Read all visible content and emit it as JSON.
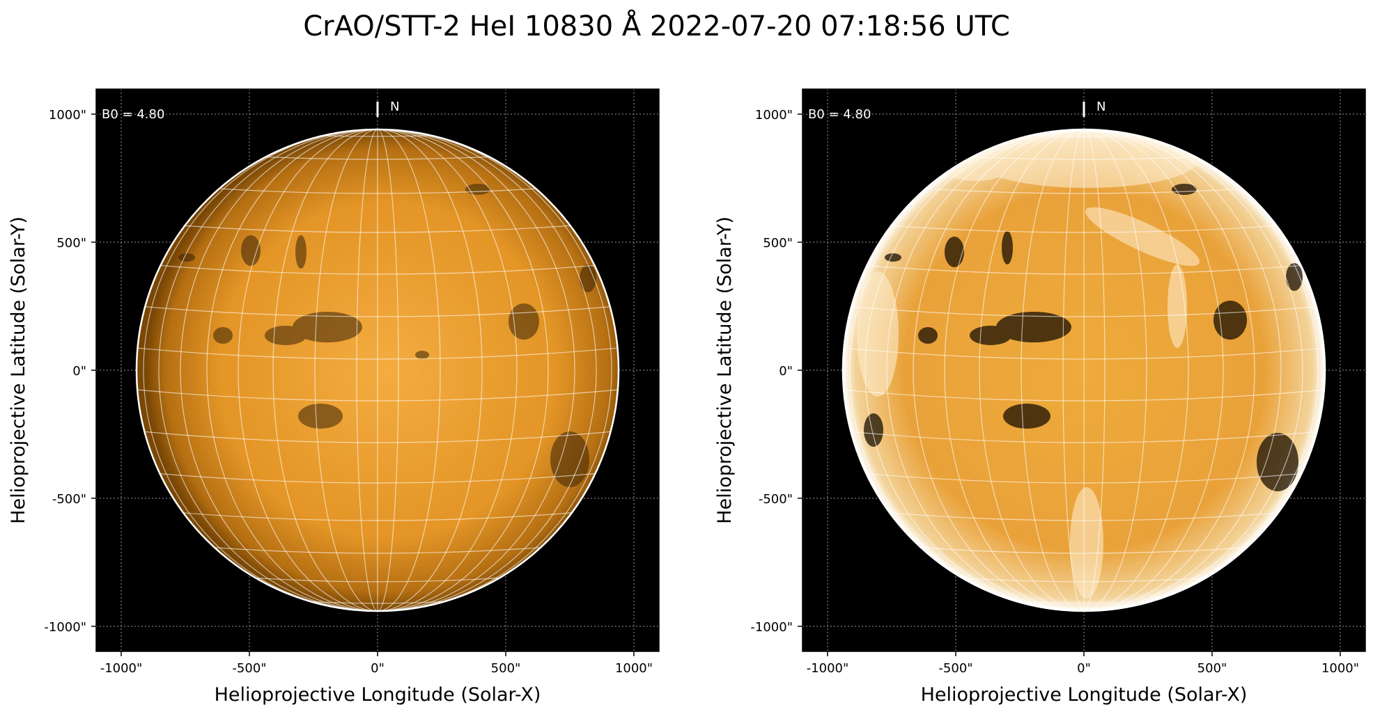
{
  "title": "CrAO/STT-2 HeI 10830 Å 2022-07-20 07:18:56 UTC",
  "colors": {
    "background": "#000000",
    "disk_center": "#f2a63a",
    "disk_limb": "#8a5208",
    "grid": "#ffffff",
    "limb": "#ffffff"
  },
  "panels": [
    {
      "name": "original",
      "b0_label": "B0 = 4.80",
      "north_label": "N",
      "xlabel": "Helioprojective Longitude (Solar-X)",
      "ylabel": "Helioprojective Latitude (Solar-Y)",
      "x_ticks": [
        "-1000\"",
        "-500\"",
        "0\"",
        "500\"",
        "1000\""
      ],
      "y_ticks": [
        "1000\"",
        "500\"",
        "0\"",
        "-500\"",
        "-1000\""
      ]
    },
    {
      "name": "enhanced",
      "b0_label": "B0 = 4.80",
      "north_label": "N",
      "xlabel": "Helioprojective Longitude (Solar-X)",
      "ylabel": "Helioprojective Latitude (Solar-Y)",
      "x_ticks": [
        "-1000\"",
        "-500\"",
        "0\"",
        "500\"",
        "1000\""
      ],
      "y_ticks": [
        "1000\"",
        "500\"",
        "0\"",
        "-500\"",
        "-1000\""
      ]
    }
  ]
}
